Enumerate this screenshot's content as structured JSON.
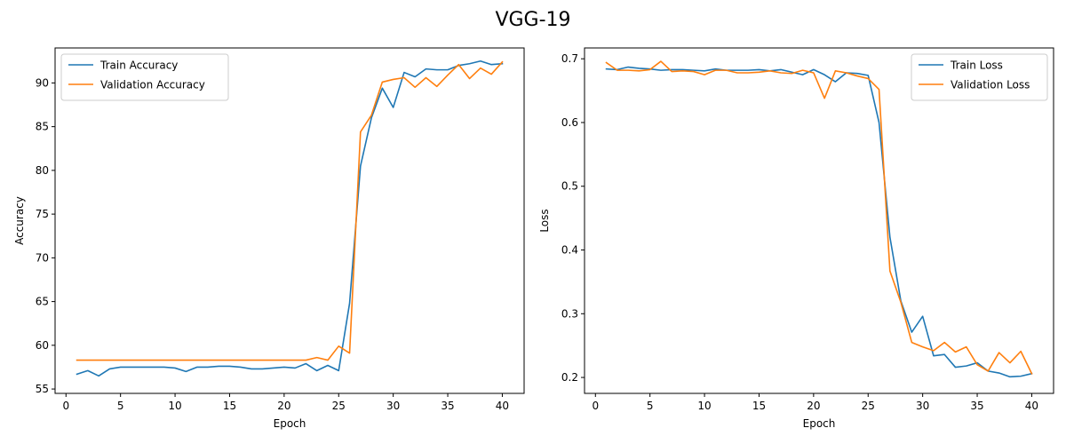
{
  "figure": {
    "title": "VGG-19"
  },
  "chart_data": [
    {
      "type": "line",
      "xlabel": "Epoch",
      "ylabel": "Accuracy",
      "xlim": [
        -1,
        42
      ],
      "ylim": [
        54.5,
        94.0
      ],
      "xticks": [
        0,
        5,
        10,
        15,
        20,
        25,
        30,
        35,
        40
      ],
      "yticks": [
        55,
        60,
        65,
        70,
        75,
        80,
        85,
        90
      ],
      "legend": "top-left",
      "grid": false,
      "x": [
        1,
        2,
        3,
        4,
        5,
        6,
        7,
        8,
        9,
        10,
        11,
        12,
        13,
        14,
        15,
        16,
        17,
        18,
        19,
        20,
        21,
        22,
        23,
        24,
        25,
        26,
        27,
        28,
        29,
        30,
        31,
        32,
        33,
        34,
        35,
        36,
        37,
        38,
        39,
        40
      ],
      "series": [
        {
          "name": "Train Accuracy",
          "color": "#1f77b4",
          "values": [
            56.7,
            57.1,
            56.5,
            57.3,
            57.5,
            57.5,
            57.5,
            57.5,
            57.5,
            57.4,
            57.0,
            57.5,
            57.5,
            57.6,
            57.6,
            57.5,
            57.3,
            57.3,
            57.4,
            57.5,
            57.4,
            57.9,
            57.1,
            57.7,
            57.1,
            64.8,
            80.5,
            86.0,
            89.4,
            87.2,
            91.2,
            90.7,
            91.6,
            91.5,
            91.5,
            92.0,
            92.2,
            92.5,
            92.1,
            92.2
          ]
        },
        {
          "name": "Validation Accuracy",
          "color": "#ff7f0e",
          "values": [
            58.3,
            58.3,
            58.3,
            58.3,
            58.3,
            58.3,
            58.3,
            58.3,
            58.3,
            58.3,
            58.3,
            58.3,
            58.3,
            58.3,
            58.3,
            58.3,
            58.3,
            58.3,
            58.3,
            58.3,
            58.3,
            58.3,
            58.6,
            58.3,
            59.9,
            59.1,
            84.4,
            86.3,
            90.1,
            90.4,
            90.6,
            89.5,
            90.6,
            89.6,
            90.9,
            92.1,
            90.5,
            91.7,
            91.0,
            92.4
          ]
        }
      ]
    },
    {
      "type": "line",
      "xlabel": "Epoch",
      "ylabel": "Loss",
      "xlim": [
        -1,
        42
      ],
      "ylim": [
        0.175,
        0.717
      ],
      "xticks": [
        0,
        5,
        10,
        15,
        20,
        25,
        30,
        35,
        40
      ],
      "yticks": [
        0.2,
        0.3,
        0.4,
        0.5,
        0.6,
        0.7
      ],
      "legend": "top-right",
      "grid": false,
      "x": [
        1,
        2,
        3,
        4,
        5,
        6,
        7,
        8,
        9,
        10,
        11,
        12,
        13,
        14,
        15,
        16,
        17,
        18,
        19,
        20,
        21,
        22,
        23,
        24,
        25,
        26,
        27,
        28,
        29,
        30,
        31,
        32,
        33,
        34,
        35,
        36,
        37,
        38,
        39,
        40
      ],
      "series": [
        {
          "name": "Train Loss",
          "color": "#1f77b4",
          "values": [
            0.684,
            0.683,
            0.687,
            0.685,
            0.684,
            0.682,
            0.683,
            0.683,
            0.682,
            0.681,
            0.684,
            0.682,
            0.682,
            0.682,
            0.683,
            0.681,
            0.683,
            0.679,
            0.675,
            0.683,
            0.675,
            0.664,
            0.678,
            0.677,
            0.674,
            0.6,
            0.42,
            0.32,
            0.271,
            0.296,
            0.234,
            0.236,
            0.216,
            0.218,
            0.223,
            0.21,
            0.207,
            0.201,
            0.202,
            0.206
          ]
        },
        {
          "name": "Validation Loss",
          "color": "#ff7f0e",
          "values": [
            0.694,
            0.682,
            0.682,
            0.681,
            0.683,
            0.696,
            0.68,
            0.681,
            0.68,
            0.675,
            0.682,
            0.682,
            0.678,
            0.678,
            0.679,
            0.681,
            0.678,
            0.677,
            0.682,
            0.678,
            0.638,
            0.681,
            0.678,
            0.673,
            0.669,
            0.652,
            0.367,
            0.318,
            0.255,
            0.248,
            0.242,
            0.255,
            0.24,
            0.248,
            0.22,
            0.21,
            0.239,
            0.223,
            0.241,
            0.206
          ]
        }
      ]
    }
  ]
}
